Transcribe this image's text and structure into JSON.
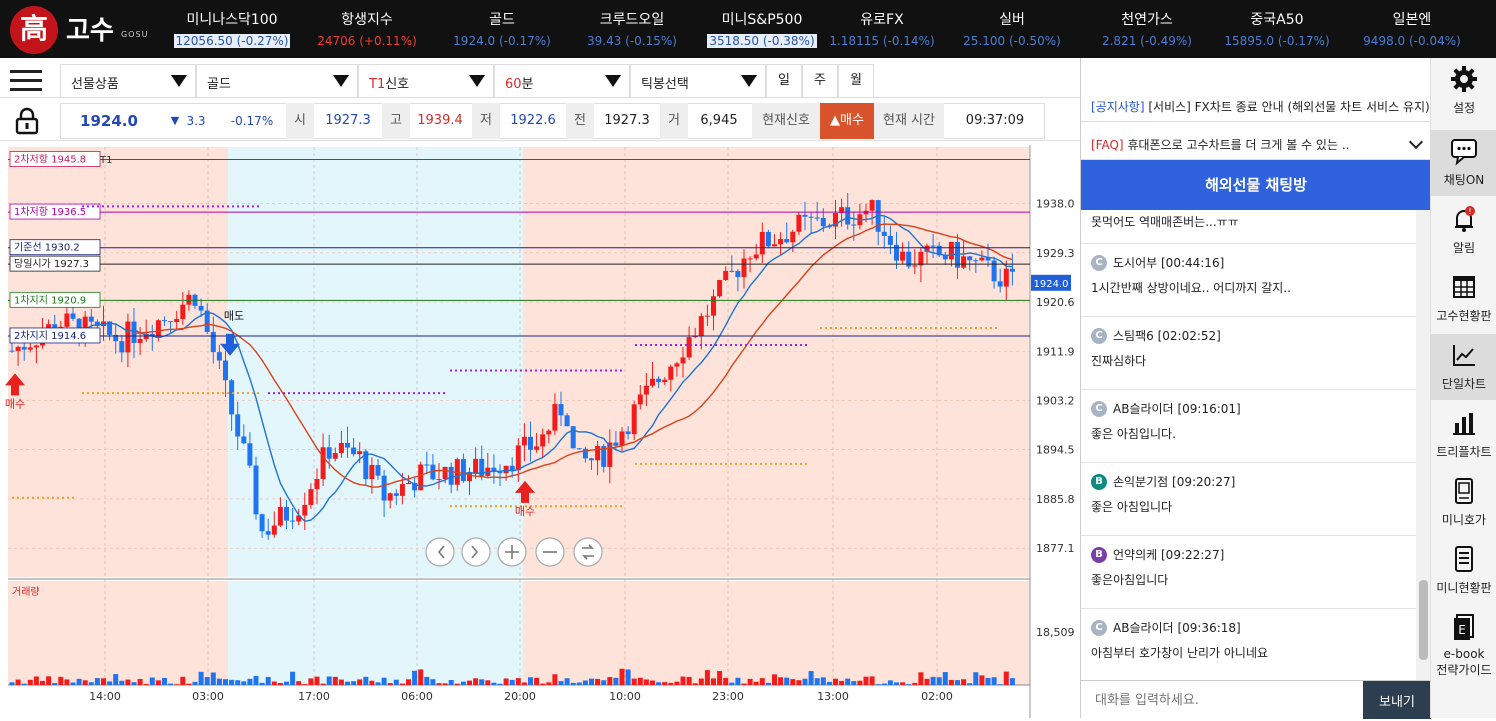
{
  "app": {
    "logo_char": "高",
    "logo_text": "고수",
    "logo_sub": "GOSU"
  },
  "tickers": [
    {
      "name": "미니나스닥100",
      "value": "12056.50",
      "change": "(-0.27%)",
      "dir": "down",
      "hl": true
    },
    {
      "name": "항생지수",
      "value": "24706",
      "change": "(+0.11%)",
      "dir": "up",
      "hl": false
    },
    {
      "name": "골드",
      "value": "1924.0",
      "change": "(-0.17%)",
      "dir": "down",
      "hl": false
    },
    {
      "name": "크루드오일",
      "value": "39.43",
      "change": "(-0.15%)",
      "dir": "down",
      "hl": false
    },
    {
      "name": "미니S&P500",
      "value": "3518.50",
      "change": "(-0.38%)",
      "dir": "down",
      "hl": true
    },
    {
      "name": "유로FX",
      "value": "1.18115",
      "change": "(-0.14%)",
      "dir": "down",
      "hl": false
    },
    {
      "name": "실버",
      "value": "25.100",
      "change": "(-0.50%)",
      "dir": "down",
      "hl": false
    },
    {
      "name": "천연가스",
      "value": "2.821",
      "change": "(-0.49%)",
      "dir": "down",
      "hl": false
    },
    {
      "name": "중국A50",
      "value": "15895.0",
      "change": "(-0.17%)",
      "dir": "down",
      "hl": false
    },
    {
      "name": "일본엔",
      "value": "9498.0",
      "change": "(-0.04%)",
      "dir": "down",
      "hl": false
    }
  ],
  "toolbar": {
    "product_type": "선물상품",
    "product": "골드",
    "signal_prefix": "T1",
    "signal_suffix": "신호",
    "interval_num": "60",
    "interval_unit": "분",
    "tick_select": "틱봉선택",
    "day": "일",
    "week": "주",
    "month": "월"
  },
  "quote": {
    "price": "1924.0",
    "arrow": "▼",
    "change": "3.3",
    "pct": "-0.17%",
    "open_label": "시",
    "open": "1927.3",
    "high_label": "고",
    "high": "1939.4",
    "low_label": "저",
    "low": "1922.6",
    "prev_label": "전",
    "prev": "1927.3",
    "vol_label": "거",
    "vol": "6,945",
    "signal_label": "현재신호",
    "signal_value": "▲매수",
    "time_label": "현재 시간",
    "time": "09:37:09"
  },
  "chart_data": {
    "type": "candlestick",
    "legend_text": "T1",
    "levels": [
      {
        "label": "2차저항",
        "value": 1945.8,
        "color": "#c2185b"
      },
      {
        "label": "1차저항",
        "value": 1936.5,
        "color": "#b000b0"
      },
      {
        "label": "기준선",
        "value": 1930.2,
        "color": "#1a237e"
      },
      {
        "label": "당일시가",
        "value": 1927.3,
        "color": "#222222"
      },
      {
        "label": "1차지지",
        "value": 1920.9,
        "color": "#1b7a1b"
      },
      {
        "label": "2차지지",
        "value": 1914.6,
        "color": "#1a237e"
      }
    ],
    "y_ticks": [
      "1938.0",
      "1929.3",
      "1920.6",
      "1911.9",
      "1903.2",
      "1894.5",
      "1885.8",
      "1877.1"
    ],
    "y_tick_values": [
      1938.0,
      1929.3,
      1920.6,
      1911.9,
      1903.2,
      1894.5,
      1885.8,
      1877.1
    ],
    "ylim": [
      1872.0,
      1948.0
    ],
    "current_price": "1924.0",
    "x_ticks": [
      "14:00",
      "03:00",
      "17:00",
      "06:00",
      "20:00",
      "10:00",
      "23:00",
      "13:00",
      "02:00"
    ],
    "volume_label": "거래량",
    "volume_tick": "18,509",
    "volume_tick_value": 18509,
    "signals": [
      {
        "type": "buy",
        "label": "매수"
      },
      {
        "type": "sell",
        "label": "매도"
      },
      {
        "type": "buy",
        "label": "매수"
      }
    ],
    "nav_buttons": [
      "prev",
      "next",
      "zoom-in",
      "zoom-out",
      "reset"
    ]
  },
  "notices": [
    {
      "tag": "[공지사항]",
      "text": "[서비스] FX차트 종료 안내 (해외선물 차트 서비스 유지)"
    },
    {
      "tag": "[FAQ]",
      "text": "휴대폰으로 고수차트를 더 크게 볼 수 있는 .."
    }
  ],
  "chat": {
    "title": "해외선물 채팅방",
    "first_text": "못먹어도 역매매존버는...ㅠㅠ",
    "messages": [
      {
        "user": "도시어부",
        "time": "[00:44:16]",
        "text": "1시간반째 상방이네요.. 어디까지 갈지..",
        "badge": "C",
        "color": "#a8b4c4"
      },
      {
        "user": "스팀팩6",
        "time": "[02:02:52]",
        "text": "진짜심하다",
        "badge": "C",
        "color": "#a8b4c4"
      },
      {
        "user": "AB슬라이더",
        "time": "[09:16:01]",
        "text": "좋은 아침입니다.",
        "badge": "C",
        "color": "#a8b4c4"
      },
      {
        "user": "손익분기점",
        "time": "[09:20:27]",
        "text": "좋은 아침입니다",
        "badge": "B",
        "color": "#0f8a80"
      },
      {
        "user": "언약의케",
        "time": "[09:22:27]",
        "text": "좋은아침입니다",
        "badge": "B",
        "color": "#7b3fa8"
      },
      {
        "user": "AB슬라이더",
        "time": "[09:36:18]",
        "text": "아침부터 호가창이 난리가 아니네요",
        "badge": "C",
        "color": "#a8b4c4"
      }
    ],
    "input_placeholder": "대화를 입력하세요.",
    "send_label": "보내기"
  },
  "sidebar": [
    {
      "label": "설정",
      "icon": "gear-icon"
    },
    {
      "label": "채팅ON",
      "icon": "chat-icon"
    },
    {
      "label": "알림",
      "icon": "bell-icon"
    },
    {
      "label": "고수현황판",
      "icon": "grid-icon"
    },
    {
      "label": "단일차트",
      "icon": "line-chart-icon"
    },
    {
      "label": "트리플차트",
      "icon": "bar-chart-icon"
    },
    {
      "label": "미니호가",
      "icon": "mini-quote-icon"
    },
    {
      "label": "미니현황판",
      "icon": "list-icon"
    },
    {
      "label": "e-book",
      "label2": "전략가이드",
      "icon": "ebook-icon"
    }
  ]
}
